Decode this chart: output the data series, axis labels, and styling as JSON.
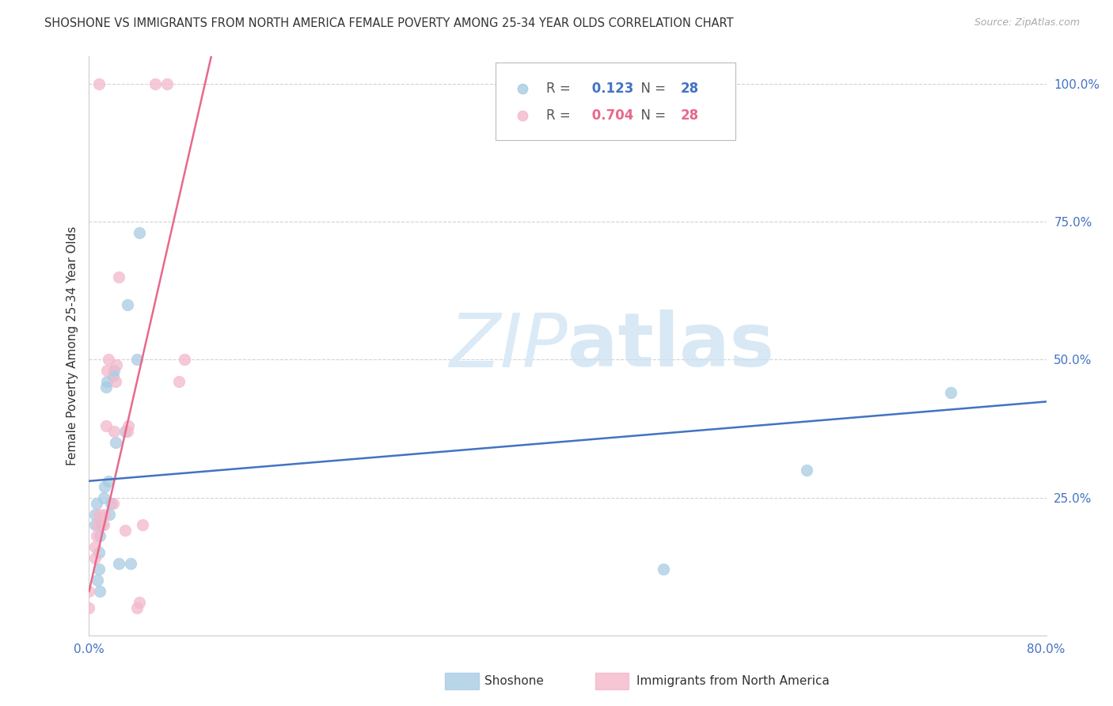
{
  "title": "SHOSHONE VS IMMIGRANTS FROM NORTH AMERICA FEMALE POVERTY AMONG 25-34 YEAR OLDS CORRELATION CHART",
  "source": "Source: ZipAtlas.com",
  "ylabel": "Female Poverty Among 25-34 Year Olds",
  "xlim": [
    0.0,
    0.8
  ],
  "ylim": [
    0.0,
    1.05
  ],
  "xticks": [
    0.0,
    0.1,
    0.2,
    0.3,
    0.4,
    0.5,
    0.6,
    0.7,
    0.8
  ],
  "xticklabels": [
    "0.0%",
    "",
    "",
    "",
    "",
    "",
    "",
    "",
    "80.0%"
  ],
  "yticks": [
    0.0,
    0.25,
    0.5,
    0.75,
    1.0
  ],
  "yticklabels": [
    "",
    "25.0%",
    "50.0%",
    "75.0%",
    "100.0%"
  ],
  "shoshone_R": "0.123",
  "shoshone_N": "28",
  "immigrants_R": "0.704",
  "immigrants_N": "28",
  "blue_color": "#a8cce4",
  "pink_color": "#f4b8cb",
  "blue_line_color": "#4472c4",
  "pink_line_color": "#e8698a",
  "tick_label_color": "#4472c4",
  "watermark_zip": "ZIP",
  "watermark_atlas": "atlas",
  "watermark_color": "#daeaf7",
  "legend_label1": "Shoshone",
  "legend_label2": "Immigrants from North America",
  "shoshone_x": [
    0.005,
    0.005,
    0.006,
    0.007,
    0.008,
    0.008,
    0.009,
    0.009,
    0.01,
    0.012,
    0.013,
    0.014,
    0.015,
    0.016,
    0.017,
    0.018,
    0.02,
    0.021,
    0.022,
    0.025,
    0.03,
    0.032,
    0.035,
    0.04,
    0.042,
    0.48,
    0.6,
    0.72
  ],
  "shoshone_y": [
    0.2,
    0.22,
    0.24,
    0.1,
    0.12,
    0.15,
    0.08,
    0.18,
    0.2,
    0.25,
    0.27,
    0.45,
    0.46,
    0.28,
    0.22,
    0.24,
    0.47,
    0.48,
    0.35,
    0.13,
    0.37,
    0.6,
    0.13,
    0.5,
    0.73,
    0.12,
    0.3,
    0.44
  ],
  "immigrants_x": [
    0.0,
    0.0,
    0.005,
    0.005,
    0.006,
    0.007,
    0.008,
    0.008,
    0.012,
    0.013,
    0.014,
    0.015,
    0.016,
    0.02,
    0.021,
    0.022,
    0.023,
    0.025,
    0.03,
    0.032,
    0.033,
    0.04,
    0.042,
    0.045,
    0.055,
    0.065,
    0.075,
    0.08
  ],
  "immigrants_y": [
    0.05,
    0.08,
    0.14,
    0.16,
    0.18,
    0.2,
    0.22,
    1.0,
    0.2,
    0.22,
    0.38,
    0.48,
    0.5,
    0.24,
    0.37,
    0.46,
    0.49,
    0.65,
    0.19,
    0.37,
    0.38,
    0.05,
    0.06,
    0.2,
    1.0,
    1.0,
    0.46,
    0.5
  ],
  "grid_color": "#d3d3d3",
  "background_color": "#ffffff",
  "pink_line_slope": 9.5,
  "pink_line_intercept": 0.08,
  "blue_line_slope": 0.18,
  "blue_line_intercept": 0.28
}
